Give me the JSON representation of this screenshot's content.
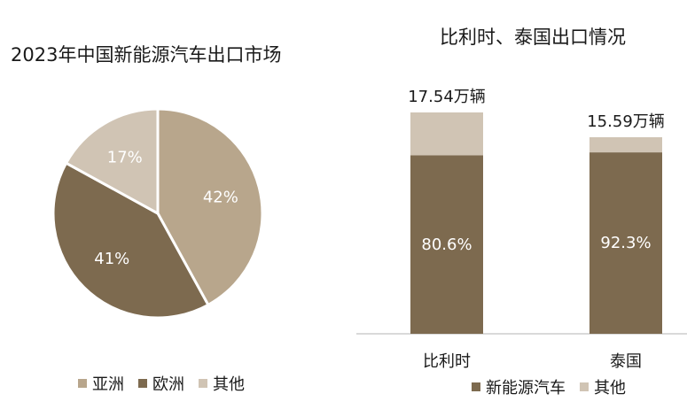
{
  "chart_data": [
    {
      "type": "pie",
      "title": "2023年中国新能源汽车出口市场",
      "slices": [
        {
          "label": "亚洲",
          "value": 42,
          "value_label": "42%",
          "color": "#b8a68c"
        },
        {
          "label": "欧洲",
          "value": 41,
          "value_label": "41%",
          "color": "#7d6a4f"
        },
        {
          "label": "其他",
          "value": 17,
          "value_label": "17%",
          "color": "#d0c4b4"
        }
      ],
      "start_angle_deg": 0,
      "direction": "clockwise",
      "legend": "bottom"
    },
    {
      "type": "bar",
      "stacked": true,
      "percent_stacked": true,
      "title": "比利时、泰国出口情况",
      "categories": [
        "比利时",
        "泰国"
      ],
      "totals": [
        "17.54万辆",
        "15.59万辆"
      ],
      "series": [
        {
          "name": "新能源汽车",
          "values": [
            80.6,
            92.3
          ],
          "value_labels": [
            "80.6%",
            "92.3%"
          ],
          "color": "#7d6a4f"
        },
        {
          "name": "其他",
          "values": [
            19.4,
            7.7
          ],
          "color": "#d0c4b4"
        }
      ],
      "ylim": [
        0,
        100
      ],
      "legend": "bottom"
    }
  ]
}
